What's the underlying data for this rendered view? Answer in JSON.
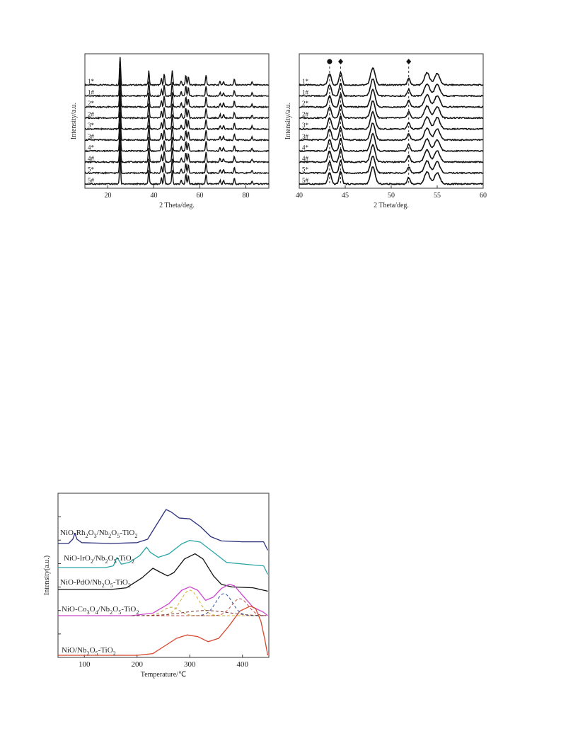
{
  "chart_data": [
    {
      "type": "line",
      "xlabel": "2 Theta/deg.",
      "ylabel": "Intensity/a.u.",
      "xlim": [
        10,
        90
      ],
      "xticks": [
        20,
        40,
        60,
        80
      ],
      "series": [
        {
          "name": "1*"
        },
        {
          "name": "1#"
        },
        {
          "name": "2*"
        },
        {
          "name": "2#"
        },
        {
          "name": "3*"
        },
        {
          "name": "3#"
        },
        {
          "name": "4*"
        },
        {
          "name": "4#"
        },
        {
          "name": "5*"
        },
        {
          "name": "5#"
        }
      ],
      "peaks": [
        {
          "x": 25.3,
          "h": 40
        },
        {
          "x": 37.8,
          "h": 20
        },
        {
          "x": 43.3,
          "h": 9
        },
        {
          "x": 44.5,
          "h": 15
        },
        {
          "x": 48.0,
          "h": 20
        },
        {
          "x": 51.9,
          "h": 6
        },
        {
          "x": 53.9,
          "h": 14
        },
        {
          "x": 55.0,
          "h": 12
        },
        {
          "x": 62.7,
          "h": 14
        },
        {
          "x": 68.8,
          "h": 5
        },
        {
          "x": 70.3,
          "h": 5
        },
        {
          "x": 75.0,
          "h": 8
        },
        {
          "x": 82.7,
          "h": 4
        }
      ]
    },
    {
      "type": "line",
      "xlabel": "2 Theta/deg.",
      "ylabel": "Intensity/a.u.",
      "xlim": [
        40,
        60
      ],
      "xticks": [
        40,
        45,
        50,
        55,
        60
      ],
      "series": [
        {
          "name": "1*"
        },
        {
          "name": "1#"
        },
        {
          "name": "2*"
        },
        {
          "name": "2#"
        },
        {
          "name": "3*"
        },
        {
          "name": "3#"
        },
        {
          "name": "4*"
        },
        {
          "name": "4#"
        },
        {
          "name": "5*"
        },
        {
          "name": "5#"
        }
      ],
      "markers": [
        {
          "symbol": "circle",
          "x": 43.3
        },
        {
          "symbol": "diamond",
          "x": 44.5
        },
        {
          "symbol": "diamond",
          "x": 51.9
        }
      ],
      "dashed_lines_x": [
        43.3,
        44.5,
        51.9
      ],
      "peaks": [
        {
          "x": 43.3,
          "h": 16,
          "w": 0.25
        },
        {
          "x": 44.5,
          "h": 18,
          "w": 0.22
        },
        {
          "x": 48.0,
          "h": 24,
          "w": 0.35
        },
        {
          "x": 51.9,
          "h": 9,
          "w": 0.22
        },
        {
          "x": 53.9,
          "h": 17,
          "w": 0.4
        },
        {
          "x": 55.0,
          "h": 16,
          "w": 0.4
        }
      ]
    },
    {
      "type": "line",
      "xlabel": "Temperature/℃",
      "ylabel": "Intensity(a.u.)",
      "xlim": [
        50,
        450
      ],
      "xticks": [
        100,
        200,
        300,
        400
      ],
      "series": [
        {
          "name": "NiO-Rh2O3/Nb2O5-TiO2",
          "color": "#2b2f7d",
          "x": [
            50,
            70,
            78,
            82,
            86,
            95,
            150,
            200,
            220,
            240,
            255,
            265,
            280,
            300,
            320,
            340,
            360,
            400,
            440,
            448
          ],
          "y": [
            0,
            0,
            5,
            12,
            5,
            1,
            0,
            1,
            5,
            25,
            40,
            37,
            30,
            29,
            20,
            8,
            3,
            2,
            2,
            -8
          ]
        },
        {
          "name": "NiO-IrO2/Nb2O5-TiO2",
          "color": "#2aa6a6",
          "x": [
            50,
            140,
            155,
            162,
            170,
            185,
            205,
            218,
            225,
            240,
            260,
            285,
            300,
            320,
            345,
            370,
            420,
            440,
            448
          ],
          "y": [
            0,
            0,
            2,
            12,
            4,
            6,
            14,
            24,
            18,
            12,
            16,
            28,
            32,
            30,
            18,
            6,
            3,
            2,
            -8
          ]
        },
        {
          "name": "NiO-PdO/Nb2O5-TiO2",
          "color": "#111111",
          "x": [
            50,
            150,
            180,
            210,
            230,
            245,
            258,
            270,
            290,
            310,
            325,
            345,
            360,
            380,
            420,
            448
          ],
          "y": [
            0,
            0,
            2,
            14,
            25,
            20,
            16,
            20,
            36,
            42,
            36,
            16,
            6,
            3,
            2,
            -2
          ]
        },
        {
          "name": "NiO-Co3O4/Nb2O5-TiO2",
          "color": "#cc44cc",
          "x": [
            50,
            190,
            230,
            260,
            285,
            300,
            315,
            330,
            345,
            360,
            375,
            385,
            400,
            420,
            440,
            448
          ],
          "y": [
            0,
            0,
            3,
            14,
            30,
            34,
            30,
            18,
            22,
            32,
            37,
            35,
            24,
            10,
            4,
            0
          ]
        },
        {
          "name": "NiO/Nb2O5-TiO2",
          "color": "#d9442a",
          "x": [
            50,
            200,
            230,
            250,
            275,
            295,
            315,
            335,
            355,
            375,
            395,
            415,
            425,
            435,
            442,
            448
          ],
          "y": [
            0,
            0,
            2,
            10,
            20,
            24,
            22,
            16,
            20,
            35,
            52,
            58,
            55,
            40,
            20,
            0
          ]
        }
      ]
    }
  ]
}
